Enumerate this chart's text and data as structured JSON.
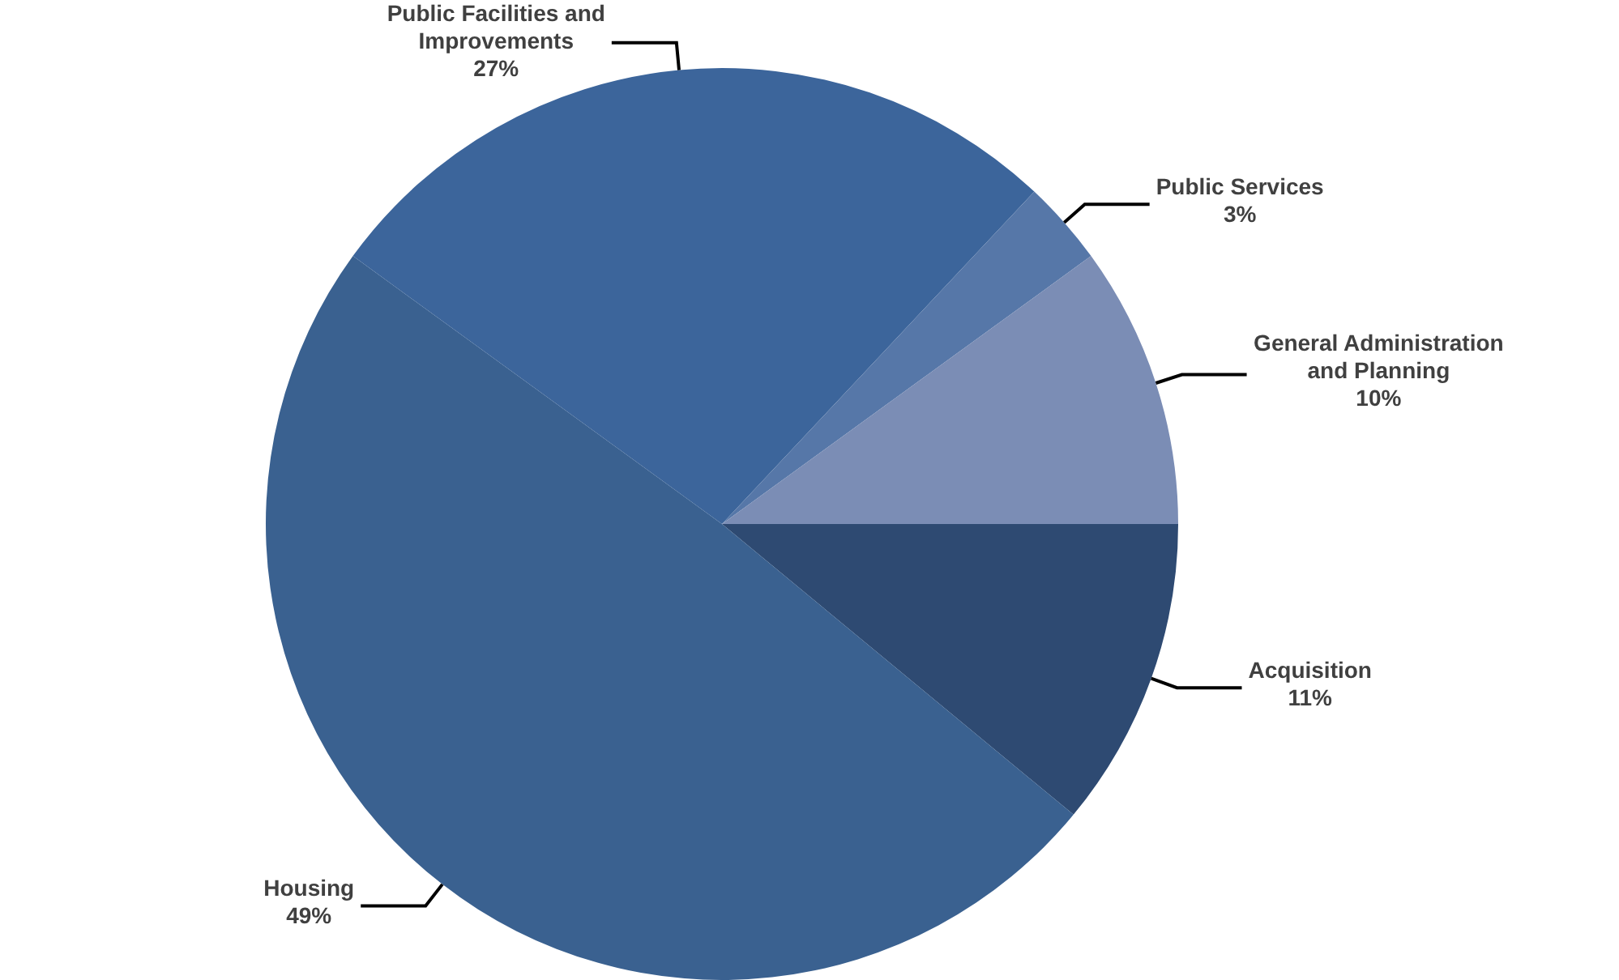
{
  "chart_data": {
    "type": "pie",
    "categories": [
      "Acquisition",
      "Housing",
      "Public Facilities and Improvements",
      "Public Services",
      "General Administration and Planning"
    ],
    "values": [
      11,
      49,
      27,
      3,
      10
    ],
    "value_labels": [
      "11%",
      "49%",
      "27%",
      "3%",
      "10%"
    ],
    "colors": [
      "#2e4a72",
      "#3a6190",
      "#3c659b",
      "#5677a8",
      "#7b8db5"
    ],
    "legend": false
  }
}
